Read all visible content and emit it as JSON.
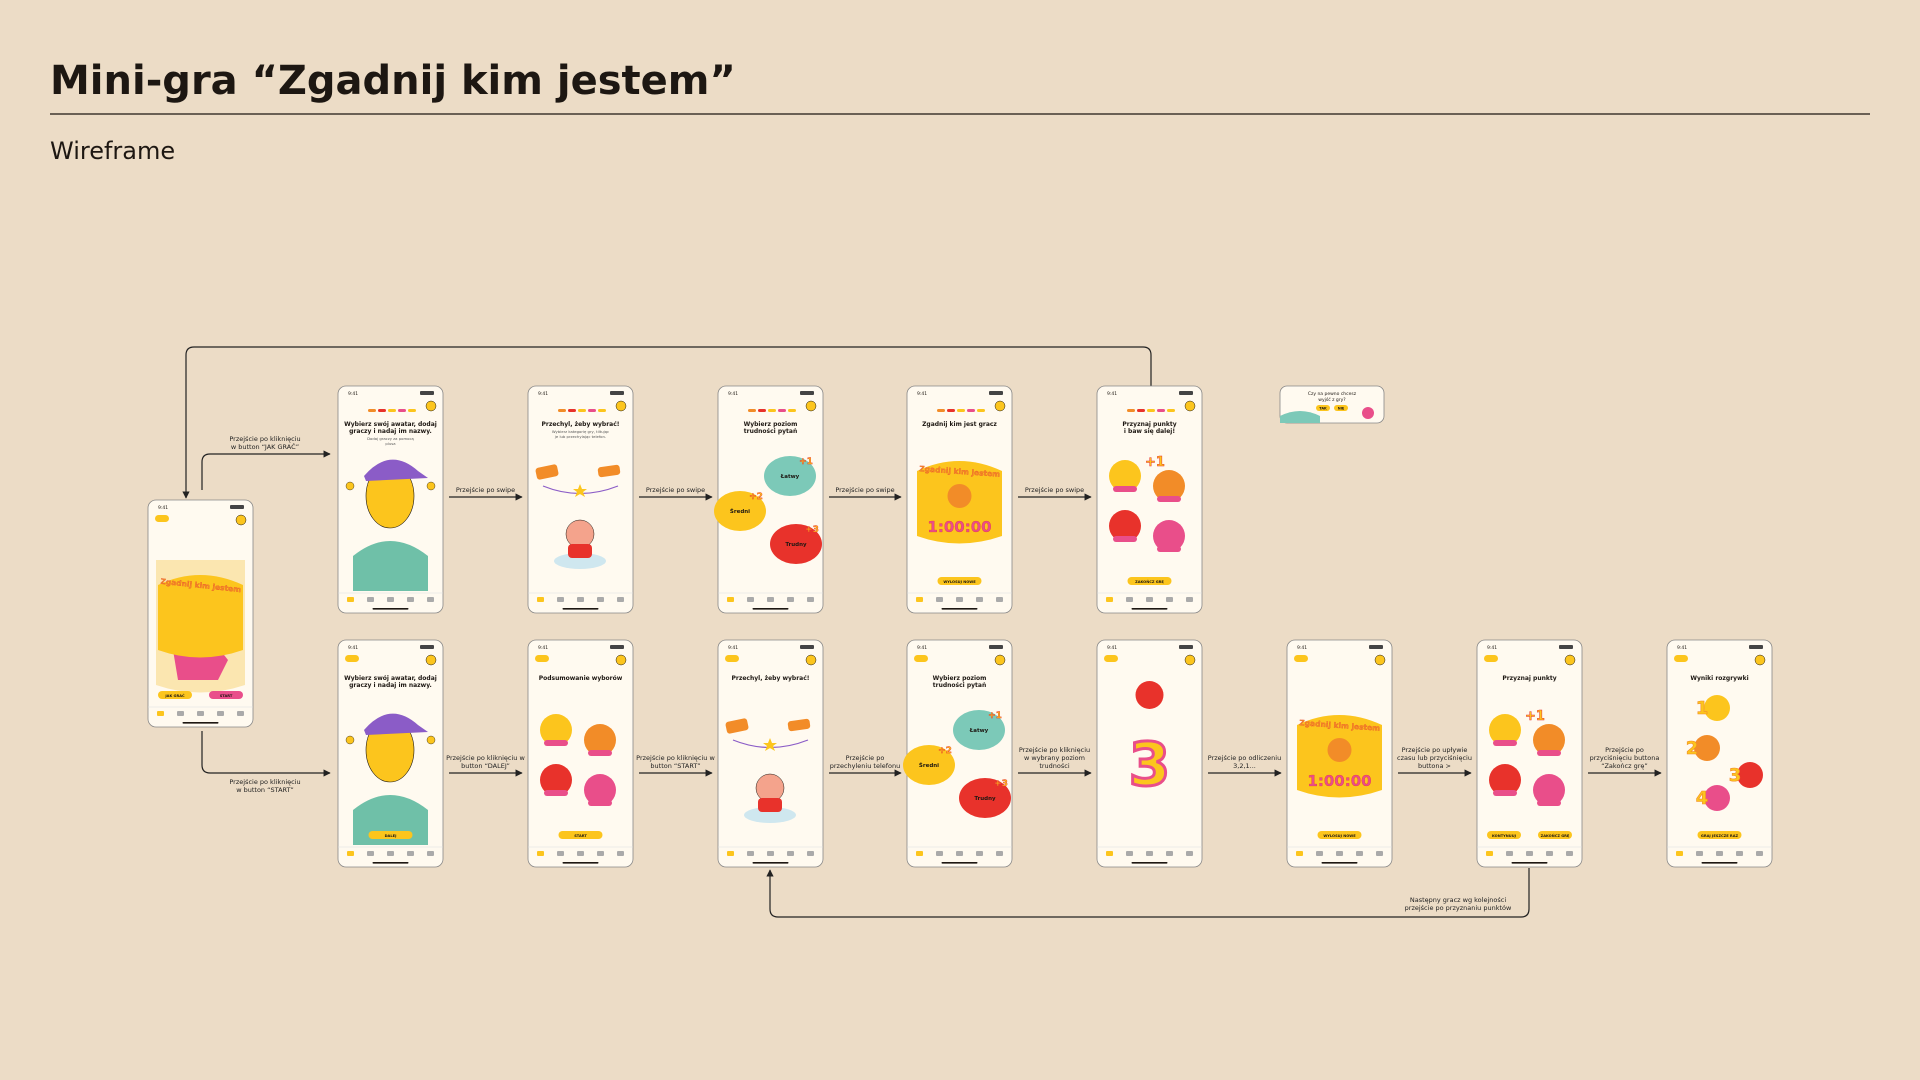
{
  "header": {
    "title": "Mini-gra “Zgadnij kim jestem”",
    "subtitle": "Wireframe"
  },
  "status_time": "9:41",
  "screens": [
    {
      "logo": "Zgadnij kim jestem",
      "buttons": [
        "JAK GRAĆ",
        "START"
      ]
    },
    {
      "title": [
        "Wybierz swój awatar, dodaj",
        "graczy i nadaj im nazwy."
      ],
      "caption": [
        "Dodaj graczy za pomocą",
        "plusa"
      ]
    },
    {
      "title": [
        "Przechyl, żeby wybrać!"
      ],
      "caption": [
        "Wybierz kategorię gry, tiltując",
        "je lub przechylając telefon."
      ]
    },
    {
      "title": [
        "Wybierz poziom",
        "trudności pytań"
      ],
      "options": [
        "Łatwy",
        "Średni",
        "Trudny"
      ],
      "badges": [
        "+1",
        "+2",
        "+3"
      ]
    },
    {
      "title": [
        "Zgadnij kim jest gracz"
      ],
      "logo": "Zgadnij kim jestem",
      "timer": "1:00:00",
      "buttons": [
        "WYLOSUJ NOWE"
      ]
    },
    {
      "title": [
        "Przyznaj punkty",
        "i baw się dalej!"
      ],
      "badges": [
        "+1"
      ],
      "buttons": [
        "ZAKOŃCZ GRĘ"
      ]
    },
    {
      "popup": [
        "Czy na pewno chcesz",
        "wyjść z gry?"
      ],
      "buttons": [
        "TAK",
        "NIE"
      ]
    },
    {
      "title": [
        "Wybierz swój awatar, dodaj",
        "graczy i nadaj im nazwy."
      ],
      "buttons": [
        "DALEJ"
      ]
    },
    {
      "title": [
        "Podsumowanie wyborów"
      ],
      "buttons": [
        "START"
      ]
    },
    {
      "title": [
        "Przechyl, żeby wybrać!"
      ]
    },
    {
      "title": [
        "Wybierz poziom",
        "trudności pytań"
      ],
      "options": [
        "Łatwy",
        "Średni",
        "Trudny"
      ],
      "badges": [
        "+1",
        "+2",
        "+3"
      ]
    },
    {
      "countdown": "3"
    },
    {
      "logo": "Zgadnij kim jestem",
      "timer": "1:00:00",
      "buttons": [
        "WYLOSUJ NOWE"
      ]
    },
    {
      "title": [
        "Przyznaj punkty"
      ],
      "badges": [
        "+1"
      ],
      "buttons": [
        "KONTYNUUJ",
        "ZAKOŃCZ GRĘ"
      ]
    },
    {
      "title": [
        "Wyniki rozgrywki"
      ],
      "ranks": [
        "1",
        "2",
        "3",
        "4"
      ],
      "buttons": [
        "GRAJ JESZCZE RAZ"
      ]
    }
  ],
  "edges": [
    {
      "label": [
        "Przejście po kliknięciu",
        "w button “JAK GRAĆ”"
      ]
    },
    {
      "label": [
        "Przejście po kliknięciu",
        "w button “START”"
      ]
    },
    {
      "label": [
        "Przejście po swipe"
      ]
    },
    {
      "label": [
        "Przejście po swipe"
      ]
    },
    {
      "label": [
        "Przejście po swipe"
      ]
    },
    {
      "label": [
        "Przejście po swipe"
      ]
    },
    {
      "label": [
        "Przejście po kliknięciu w",
        "button “DALEJ”"
      ]
    },
    {
      "label": [
        "Przejście po kliknięciu w",
        "button “START”"
      ]
    },
    {
      "label": [
        "Przejście po",
        "przechyleniu telefonu"
      ]
    },
    {
      "label": [
        "Przejście po kliknięciu",
        "w wybrany poziom",
        "trudności"
      ]
    },
    {
      "label": [
        "Przejście po odliczeniu",
        "3,2,1..."
      ]
    },
    {
      "label": [
        "Przejście po upływie",
        "czasu lub przyciśnięciu",
        "buttona >"
      ]
    },
    {
      "label": [
        "Przejście po",
        "przyciśnięciu buttona",
        "“Zakończ grę”"
      ]
    },
    {
      "label": [
        "Następny gracz wg kolejności",
        "przejście po przyznaniu punktów"
      ]
    }
  ]
}
